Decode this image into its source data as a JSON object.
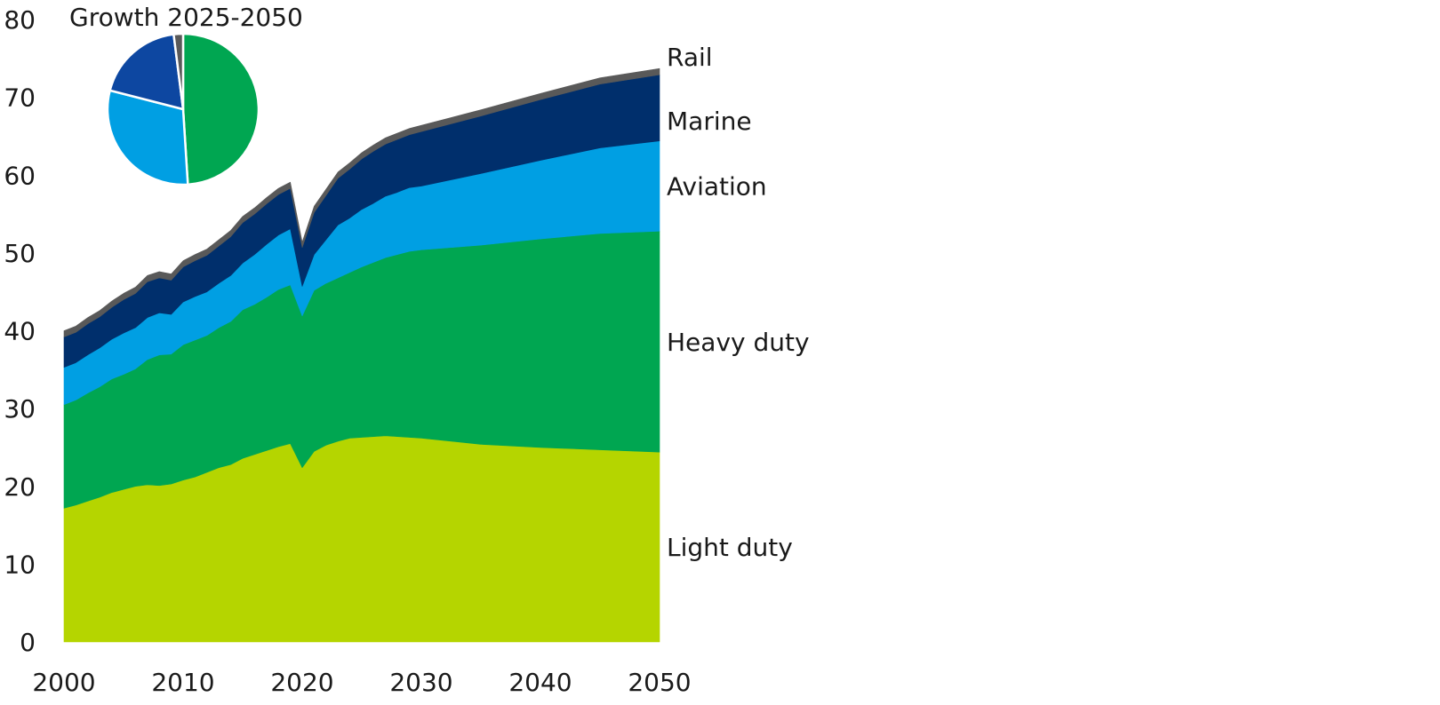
{
  "chart_data": [
    {
      "type": "area",
      "stacked": true,
      "title": "",
      "xlabel": "",
      "ylabel": "",
      "xlim": [
        2000,
        2050
      ],
      "ylim": [
        0,
        80
      ],
      "x_ticks": [
        2000,
        2010,
        2020,
        2030,
        2040,
        2050
      ],
      "y_ticks": [
        0,
        10,
        20,
        30,
        40,
        50,
        60,
        70,
        80
      ],
      "grid": false,
      "legend": "direct-labels-right",
      "x": [
        2000,
        2001,
        2002,
        2003,
        2004,
        2005,
        2006,
        2007,
        2008,
        2009,
        2010,
        2011,
        2012,
        2013,
        2014,
        2015,
        2016,
        2017,
        2018,
        2019,
        2020,
        2021,
        2022,
        2023,
        2024,
        2025,
        2026,
        2027,
        2028,
        2029,
        2030,
        2035,
        2040,
        2045,
        2050
      ],
      "series": [
        {
          "name": "Light duty",
          "color": "#b5d500",
          "values": [
            17.2,
            17.6,
            18.1,
            18.6,
            19.2,
            19.6,
            20.0,
            20.2,
            20.1,
            20.3,
            20.8,
            21.2,
            21.8,
            22.4,
            22.8,
            23.6,
            24.1,
            24.6,
            25.1,
            25.5,
            22.4,
            24.5,
            25.3,
            25.8,
            26.2,
            26.3,
            26.4,
            26.5,
            26.4,
            26.3,
            26.2,
            25.4,
            25.0,
            24.7,
            24.4
          ]
        },
        {
          "name": "Heavy duty",
          "color": "#00a651",
          "values": [
            13.3,
            13.5,
            13.9,
            14.2,
            14.6,
            14.8,
            15.1,
            16.1,
            16.8,
            16.7,
            17.4,
            17.6,
            17.6,
            18.0,
            18.4,
            19.1,
            19.3,
            19.7,
            20.2,
            20.4,
            19.5,
            20.7,
            20.8,
            21.0,
            21.3,
            21.9,
            22.4,
            22.9,
            23.4,
            23.9,
            24.2,
            25.6,
            26.8,
            27.8,
            28.4
          ]
        },
        {
          "name": "Aviation",
          "color": "#009fe3",
          "values": [
            4.8,
            4.8,
            4.9,
            5.0,
            5.1,
            5.3,
            5.3,
            5.4,
            5.4,
            5.1,
            5.5,
            5.6,
            5.6,
            5.7,
            5.9,
            6.0,
            6.4,
            6.8,
            7.0,
            7.2,
            3.8,
            4.6,
            5.6,
            6.8,
            7.0,
            7.4,
            7.6,
            7.9,
            8.0,
            8.2,
            8.2,
            9.2,
            10.1,
            11.0,
            11.6
          ]
        },
        {
          "name": "Marine",
          "color": "#002f6c",
          "values": [
            3.9,
            3.9,
            4.0,
            4.0,
            4.1,
            4.3,
            4.4,
            4.6,
            4.5,
            4.4,
            4.5,
            4.6,
            4.7,
            4.8,
            5.0,
            5.2,
            5.2,
            5.2,
            5.2,
            5.2,
            5.0,
            5.4,
            5.7,
            6.0,
            6.3,
            6.5,
            6.7,
            6.7,
            6.8,
            6.8,
            7.0,
            7.4,
            7.8,
            8.2,
            8.5
          ]
        },
        {
          "name": "Rail",
          "color": "#595959",
          "values": [
            0.8,
            0.8,
            0.8,
            0.8,
            0.8,
            0.8,
            0.8,
            0.8,
            0.8,
            0.8,
            0.8,
            0.8,
            0.8,
            0.8,
            0.8,
            0.8,
            0.8,
            0.8,
            0.8,
            0.8,
            0.7,
            0.8,
            0.8,
            0.8,
            0.8,
            0.8,
            0.8,
            0.8,
            0.8,
            0.8,
            0.8,
            0.8,
            0.8,
            0.8,
            0.8
          ]
        }
      ]
    },
    {
      "type": "pie",
      "title": "Growth 2025-2050",
      "slices": [
        {
          "name": "Heavy duty",
          "value": 49.0,
          "color": "#00a651"
        },
        {
          "name": "Aviation",
          "value": 30.0,
          "color": "#009fe3"
        },
        {
          "name": "Marine",
          "value": 19.0,
          "color": "#0d47a1"
        },
        {
          "name": "Rail",
          "value": 2.0,
          "color": "#595959"
        }
      ]
    }
  ]
}
